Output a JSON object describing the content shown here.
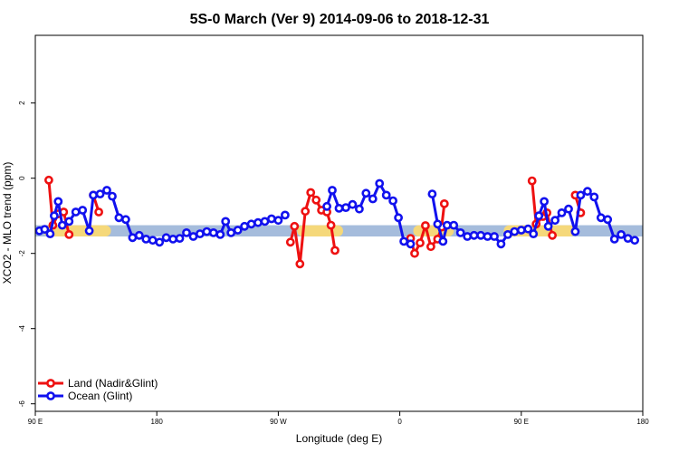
{
  "chart_data": {
    "type": "line",
    "title": "5S-0 March (Ver 9)   2014-09-06 to 2018-12-31",
    "xlabel": "Longitude (deg E)",
    "ylabel": "XCO2 - MLO trend (ppm)",
    "xlim": [
      90,
      540
    ],
    "ylim": [
      -6.2,
      3.8
    ],
    "x_ticks": [
      {
        "value": 90,
        "label": "90 E"
      },
      {
        "value": 180,
        "label": "180"
      },
      {
        "value": 270,
        "label": "90 W"
      },
      {
        "value": 360,
        "label": "0"
      },
      {
        "value": 450,
        "label": "90 E"
      },
      {
        "value": 540,
        "label": "180"
      }
    ],
    "y_ticks": [
      {
        "value": -6,
        "label": "-6"
      },
      {
        "value": -4,
        "label": "-4"
      },
      {
        "value": -2,
        "label": "-2"
      },
      {
        "value": 0,
        "label": "0"
      },
      {
        "value": 2,
        "label": "2"
      }
    ],
    "reference_band": {
      "from": -1.55,
      "to": -1.25,
      "color": "#a5bcdc"
    },
    "highlight_bands": [
      {
        "x": [
          96,
          146
        ],
        "y": [
          -1.55,
          -1.25
        ],
        "color": "#f5d87a"
      },
      {
        "x": [
          284,
          318
        ],
        "y": [
          -1.55,
          -1.25
        ],
        "color": "#f5d87a"
      },
      {
        "x": [
          370,
          400
        ],
        "y": [
          -1.55,
          -1.25
        ],
        "color": "#f5d87a"
      },
      {
        "x": [
          437,
          490
        ],
        "y": [
          -1.55,
          -1.25
        ],
        "color": "#f5d87a"
      }
    ],
    "legend_position": "bottom-left",
    "series": [
      {
        "name": "Land (Nadir&Glint)",
        "color": "#ee1111",
        "segments": [
          [
            [
              100,
              -0.05
            ],
            [
              103,
              -1.25
            ],
            [
              107,
              -0.95
            ],
            [
              111,
              -0.9
            ],
            [
              115,
              -1.5
            ]
          ],
          [
            [
              133,
              -0.45
            ],
            [
              137,
              -0.9
            ]
          ],
          [
            [
              279,
              -1.7
            ],
            [
              282,
              -1.28
            ],
            [
              286,
              -2.28
            ],
            [
              290,
              -0.88
            ],
            [
              294,
              -0.38
            ],
            [
              298,
              -0.58
            ],
            [
              302,
              -0.85
            ],
            [
              306,
              -0.9
            ],
            [
              309,
              -1.25
            ],
            [
              312,
              -1.92
            ]
          ],
          [
            [
              368,
              -1.6
            ],
            [
              371,
              -2.0
            ],
            [
              375,
              -1.72
            ],
            [
              379,
              -1.26
            ],
            [
              383,
              -1.82
            ],
            [
              388,
              -1.62
            ],
            [
              391,
              -1.3
            ],
            [
              393,
              -0.68
            ]
          ],
          [
            [
              458,
              -0.07
            ],
            [
              461,
              -1.22
            ],
            [
              466,
              -1.02
            ],
            [
              469,
              -0.92
            ],
            [
              473,
              -1.52
            ]
          ],
          [
            [
              490,
              -0.45
            ],
            [
              494,
              -0.92
            ]
          ]
        ]
      },
      {
        "name": "Ocean (Glint)",
        "color": "#1111ee",
        "segments": [
          [
            [
              93,
              -1.4
            ],
            [
              97,
              -1.36
            ],
            [
              101,
              -1.48
            ],
            [
              104,
              -1.0
            ],
            [
              107,
              -0.62
            ],
            [
              110,
              -1.25
            ],
            [
              115,
              -1.15
            ],
            [
              120,
              -0.9
            ],
            [
              125,
              -0.85
            ],
            [
              130,
              -1.4
            ],
            [
              133,
              -0.45
            ],
            [
              138,
              -0.42
            ],
            [
              143,
              -0.32
            ],
            [
              147,
              -0.48
            ],
            [
              152,
              -1.05
            ],
            [
              157,
              -1.1
            ],
            [
              162,
              -1.58
            ],
            [
              167,
              -1.52
            ],
            [
              172,
              -1.62
            ],
            [
              177,
              -1.65
            ],
            [
              182,
              -1.7
            ],
            [
              187,
              -1.58
            ],
            [
              192,
              -1.62
            ],
            [
              197,
              -1.6
            ],
            [
              202,
              -1.45
            ],
            [
              207,
              -1.55
            ],
            [
              212,
              -1.48
            ],
            [
              217,
              -1.42
            ],
            [
              222,
              -1.45
            ],
            [
              227,
              -1.5
            ],
            [
              231,
              -1.15
            ],
            [
              235,
              -1.45
            ],
            [
              240,
              -1.38
            ],
            [
              245,
              -1.28
            ],
            [
              250,
              -1.22
            ],
            [
              255,
              -1.18
            ],
            [
              260,
              -1.15
            ],
            [
              265,
              -1.08
            ],
            [
              270,
              -1.12
            ],
            [
              275,
              -0.98
            ]
          ],
          [
            [
              306,
              -0.75
            ],
            [
              310,
              -0.32
            ],
            [
              315,
              -0.8
            ],
            [
              320,
              -0.78
            ],
            [
              325,
              -0.7
            ],
            [
              330,
              -0.82
            ],
            [
              335,
              -0.4
            ],
            [
              340,
              -0.55
            ],
            [
              345,
              -0.14
            ],
            [
              350,
              -0.45
            ],
            [
              355,
              -0.6
            ],
            [
              359,
              -1.05
            ],
            [
              363,
              -1.68
            ],
            [
              368,
              -1.75
            ]
          ],
          [
            [
              384,
              -0.42
            ],
            [
              388,
              -1.22
            ],
            [
              392,
              -1.68
            ],
            [
              395,
              -1.25
            ],
            [
              400,
              -1.25
            ],
            [
              405,
              -1.45
            ],
            [
              410,
              -1.55
            ],
            [
              415,
              -1.52
            ],
            [
              420,
              -1.52
            ],
            [
              425,
              -1.55
            ],
            [
              430,
              -1.55
            ],
            [
              435,
              -1.75
            ],
            [
              440,
              -1.5
            ],
            [
              445,
              -1.42
            ],
            [
              450,
              -1.38
            ],
            [
              455,
              -1.35
            ],
            [
              459,
              -1.48
            ],
            [
              463,
              -1.0
            ],
            [
              467,
              -0.62
            ],
            [
              470,
              -1.28
            ],
            [
              475,
              -1.12
            ],
            [
              480,
              -0.92
            ],
            [
              485,
              -0.82
            ],
            [
              490,
              -1.42
            ],
            [
              494,
              -0.45
            ],
            [
              499,
              -0.35
            ],
            [
              504,
              -0.5
            ],
            [
              509,
              -1.05
            ],
            [
              514,
              -1.1
            ],
            [
              519,
              -1.62
            ],
            [
              524,
              -1.5
            ],
            [
              529,
              -1.6
            ],
            [
              534,
              -1.65
            ]
          ]
        ]
      }
    ]
  }
}
